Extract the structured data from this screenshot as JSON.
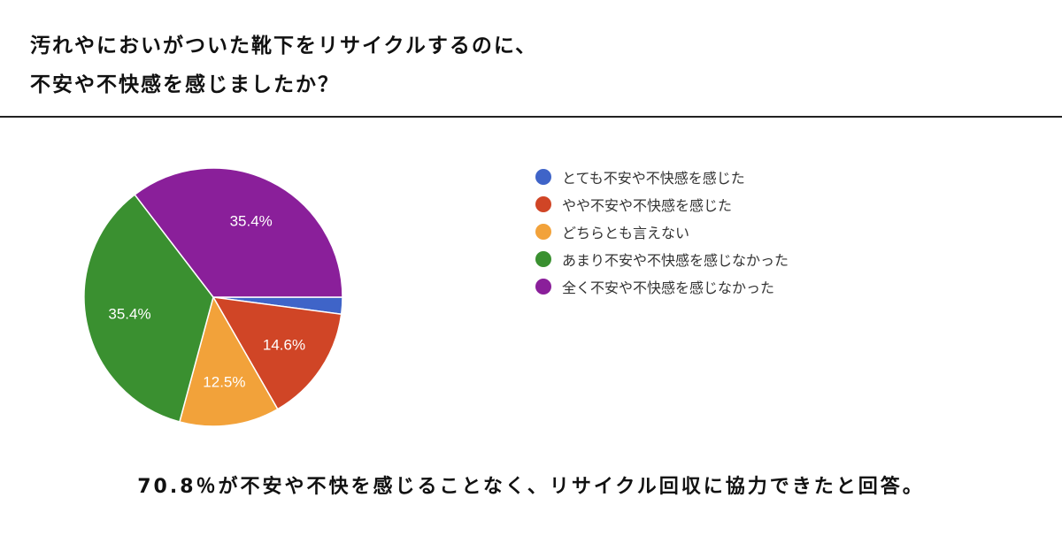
{
  "header": {
    "question_line1": "汚れやにおいがついた靴下をリサイクルするのに、",
    "question_line2": "不安や不快感を感じましたか？"
  },
  "chart_data": {
    "type": "pie",
    "categories": [
      "とても不安や不快感を感じた",
      "やや不安や不快感を感じた",
      "どちらとも言えない",
      "あまり不安や不快感を感じなかった",
      "全く不安や不快感を感じなかった"
    ],
    "values": [
      2.1,
      14.6,
      12.5,
      35.4,
      35.4
    ],
    "data_labels": [
      "",
      "14.6%",
      "12.5%",
      "35.4%",
      "35.4%"
    ],
    "colors": [
      "#3f64c8",
      "#d04526",
      "#f2a23a",
      "#3a9030",
      "#8a1f9a"
    ],
    "legend_position": "right"
  },
  "legend": {
    "items": [
      {
        "label": "とても不安や不快感を感じた",
        "color": "#3f64c8"
      },
      {
        "label": "やや不安や不快感を感じた",
        "color": "#d04526"
      },
      {
        "label": "どちらとも言えない",
        "color": "#f2a23a"
      },
      {
        "label": "あまり不安や不快感を感じなかった",
        "color": "#3a9030"
      },
      {
        "label": "全く不安や不快感を感じなかった",
        "color": "#8a1f9a"
      }
    ]
  },
  "footer": {
    "conclusion": "70.8％が不安や不快を感じることなく、リサイクル回収に協力できたと回答。"
  }
}
